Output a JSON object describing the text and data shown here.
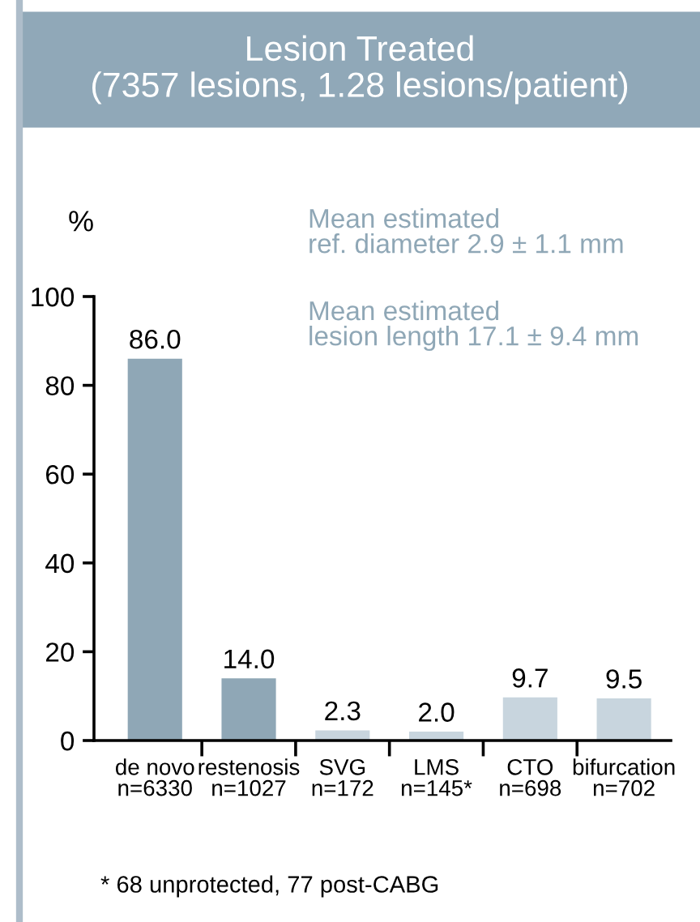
{
  "chart_data": {
    "type": "bar",
    "title": "Lesion Treated\n(7357 lesions, 1.28 lesions/patient)",
    "ylabel": "%",
    "categories": [
      "de novo\nn=6330",
      "restenosis\nn=1027",
      "SVG\nn=172",
      "LMS\nn=145*",
      "CTO\nn=698",
      "bifurcation\nn=702"
    ],
    "values": [
      86.0,
      14.0,
      2.3,
      2.0,
      9.7,
      9.5
    ],
    "colors": [
      "#8fa7b6",
      "#8fa7b6",
      "#c8d5de",
      "#c8d5de",
      "#c8d5de",
      "#c8d5de"
    ],
    "value_labels": [
      "86.0",
      "14.0",
      "2.3",
      "2.0",
      "9.7",
      "9.5"
    ],
    "ylim": [
      0,
      100
    ],
    "yticks": [
      0,
      20,
      40,
      60,
      80,
      100
    ],
    "grid": false,
    "legend": false,
    "annotations": [
      "Mean estimated\nref. diameter 2.9 ± 1.1 mm",
      "Mean estimated\nlesion length 17.1 ± 9.4 mm",
      "* 68 unprotected, 77 post-CABG"
    ]
  }
}
